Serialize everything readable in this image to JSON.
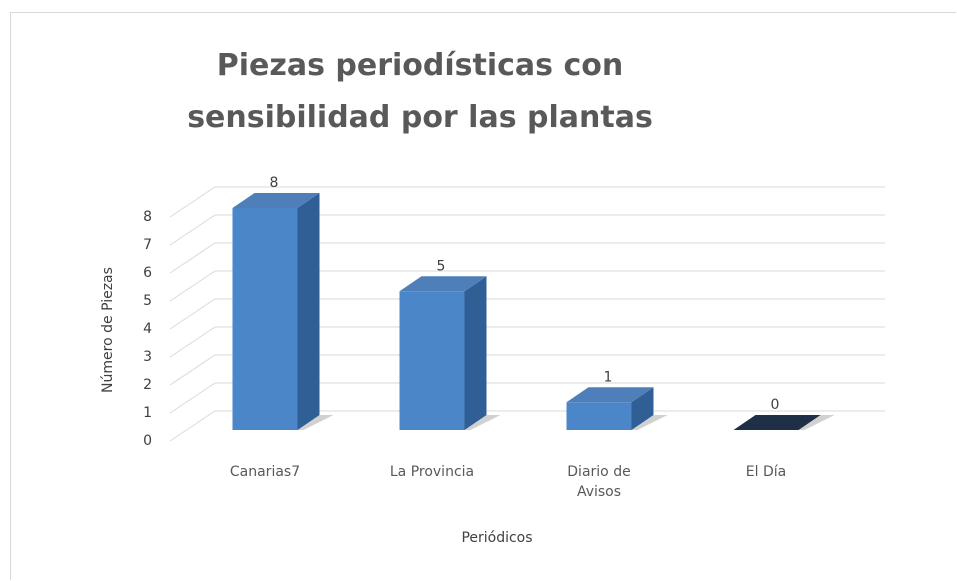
{
  "chart_data": {
    "type": "bar3d",
    "title": "Piezas periodísticas  con sensibilidad  por las plantas",
    "x_label": "Periódicos",
    "y_label": "Número de Piezas",
    "categories": [
      "Canarias7",
      "La Provincia",
      "Diario de Avisos",
      "El Día"
    ],
    "values": [
      8,
      5,
      1,
      0
    ],
    "color": "#4a86c8",
    "ylim": [
      0,
      8
    ],
    "yticks": [
      0,
      1,
      2,
      3,
      4,
      5,
      6,
      7,
      8
    ],
    "grid": true
  }
}
